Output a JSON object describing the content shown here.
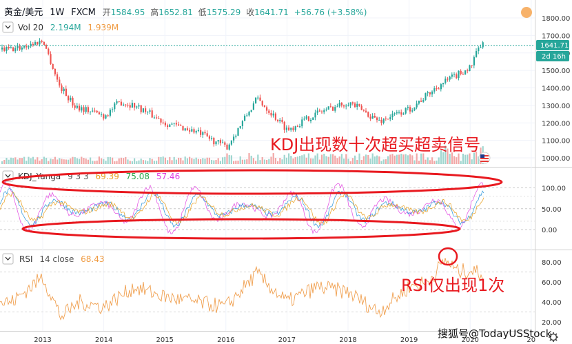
{
  "main": {
    "symbol": "黄金/美元",
    "interval": "1W",
    "exchange": "FXCM",
    "ohlc": {
      "open_label": "开",
      "open": "1584.95",
      "high_label": "高",
      "high": "1652.81",
      "low_label": "低",
      "low": "1575.29",
      "close_label": "收",
      "close": "1641.71",
      "change": "+56.76 (+3.58%)"
    },
    "price_tag": "1641.71",
    "time_tag": "2d 16h",
    "annotation": "KDJ出现数十次超买超卖信号"
  },
  "volume": {
    "label": "Vol 20",
    "v1": "2.194M",
    "v2": "1.939M"
  },
  "kdj": {
    "label": "KDJ_Yanga",
    "params": "9 3 3",
    "k": "69.39",
    "d": "75.08",
    "j": "57.46"
  },
  "rsi": {
    "label": "RSI",
    "params": "14 close",
    "value": "68.43",
    "annotation": "RSI仅出现1次"
  },
  "x_axis": {
    "years": [
      "2013",
      "2014",
      "2015",
      "2016",
      "2017",
      "2018",
      "2019",
      "2020",
      "20"
    ]
  },
  "watermark": "搜狐号@TodayUSStock",
  "icons": {
    "collapse": "chevron-down-icon",
    "flag": "us-flag-icon",
    "settings": "gear-icon"
  },
  "colors": {
    "up": "#26a69a",
    "down": "#ef5350",
    "rsi": "#f0a050",
    "k": "#1f8fd8",
    "d": "#e8a020",
    "j": "#e040e0",
    "annotation": "#e8191f"
  },
  "chart_data": [
    {
      "type": "line",
      "title": "黄金/美元 1W FXCM",
      "note": "weekly candlestick price, approximate close per period",
      "x": [
        "2012.5",
        "2013.0",
        "2013.25",
        "2013.5",
        "2014.0",
        "2014.25",
        "2014.5",
        "2015.0",
        "2015.5",
        "2016.0",
        "2016.5",
        "2017.0",
        "2017.5",
        "2018.0",
        "2018.5",
        "2019.0",
        "2019.5",
        "2020.0",
        "2020.15"
      ],
      "values": [
        1620,
        1670,
        1420,
        1300,
        1240,
        1320,
        1300,
        1200,
        1150,
        1060,
        1340,
        1160,
        1260,
        1320,
        1210,
        1280,
        1420,
        1520,
        1642
      ],
      "y_ticks": [
        1000,
        1100,
        1200,
        1300,
        1400,
        1500,
        1600,
        1700,
        1800
      ],
      "ylim": [
        960,
        1820
      ]
    },
    {
      "type": "line",
      "title": "KDJ_Yanga 9 3 3",
      "series": [
        {
          "name": "K",
          "values": [
            69.39
          ]
        },
        {
          "name": "D",
          "values": [
            75.08
          ]
        },
        {
          "name": "J",
          "values": [
            57.46
          ]
        }
      ],
      "y_ticks": [
        0.0,
        50.0,
        100.0
      ],
      "ylim": [
        -25,
        125
      ]
    },
    {
      "type": "line",
      "title": "RSI 14 close",
      "x": [
        "2012.5",
        "2013.0",
        "2013.3",
        "2013.6",
        "2014.0",
        "2014.5",
        "2015.0",
        "2015.5",
        "2016.0",
        "2016.5",
        "2017.0",
        "2017.5",
        "2018.0",
        "2018.5",
        "2019.0",
        "2019.3",
        "2019.6",
        "2019.8",
        "2020.0",
        "2020.15"
      ],
      "values": [
        40,
        65,
        25,
        40,
        35,
        55,
        45,
        40,
        35,
        68,
        40,
        55,
        50,
        30,
        55,
        60,
        82,
        70,
        72,
        68.43
      ],
      "y_ticks": [
        20.0,
        40.0,
        60.0,
        80.0
      ],
      "ylim": [
        15,
        88
      ]
    }
  ]
}
